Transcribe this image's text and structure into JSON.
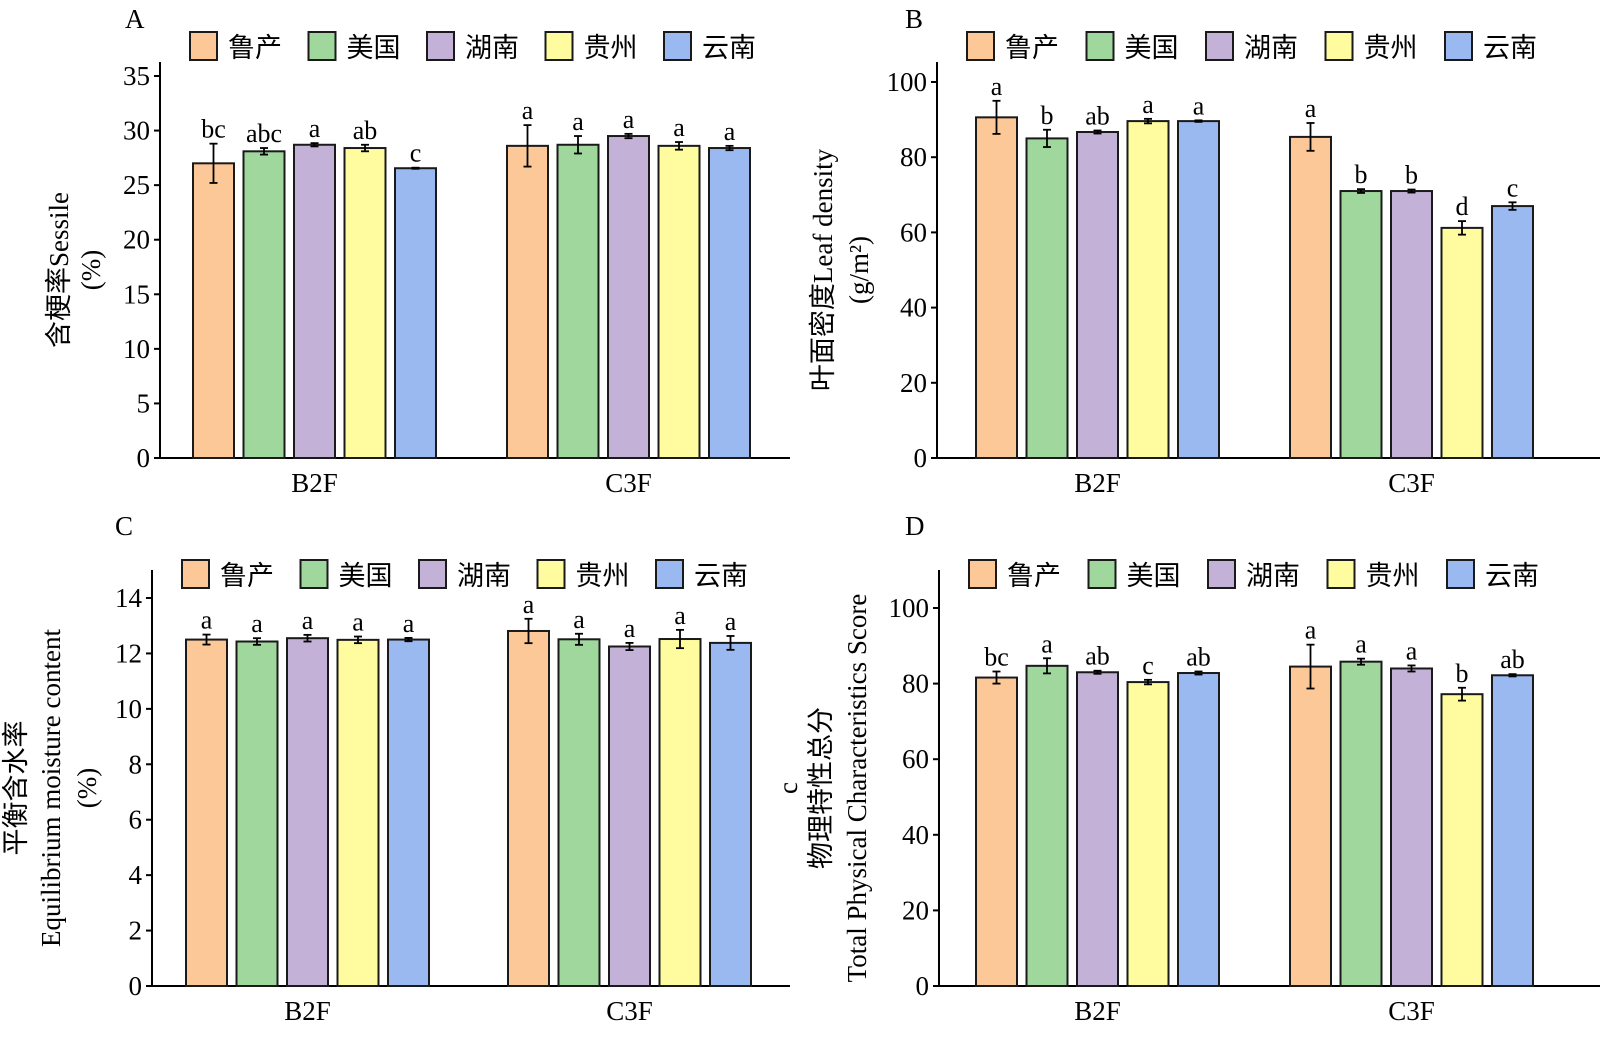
{
  "colors": {
    "鲁产": "#FDC897",
    "美国": "#9FD79D",
    "湖南": "#C3B1D7",
    "贵州": "#FEFC9E",
    "云南": "#9BB9F1",
    "bar_stroke": "#1a1a1a"
  },
  "chart_data": [
    {
      "panel": "A",
      "type": "bar",
      "title": "",
      "ylabel_lines": [
        "含梗率Sessile",
        "(%)"
      ],
      "xlabel": "",
      "categories": [
        "B2F",
        "C3F"
      ],
      "legend": [
        "鲁产",
        "美国",
        "湖南",
        "贵州",
        "云南"
      ],
      "legend_position": "top",
      "ylim": [
        0,
        38
      ],
      "yticks": [
        0,
        5,
        10,
        15,
        20,
        25,
        30,
        35
      ],
      "grid": false,
      "series": [
        {
          "name": "鲁产",
          "values": [
            27.0,
            28.6
          ],
          "errors": [
            1.8,
            1.9
          ],
          "letters": [
            "bc",
            "a"
          ]
        },
        {
          "name": "美国",
          "values": [
            28.1,
            28.7
          ],
          "errors": [
            0.3,
            0.8
          ],
          "letters": [
            "abc",
            "a"
          ]
        },
        {
          "name": "湖南",
          "values": [
            28.7,
            29.5
          ],
          "errors": [
            0.15,
            0.2
          ],
          "letters": [
            "a",
            "a"
          ]
        },
        {
          "name": "贵州",
          "values": [
            28.4,
            28.6
          ],
          "errors": [
            0.3,
            0.35
          ],
          "letters": [
            "ab",
            "a"
          ]
        },
        {
          "name": "云南",
          "values": [
            26.55,
            28.4
          ],
          "errors": [
            0.05,
            0.2
          ],
          "letters": [
            "c",
            "a"
          ]
        }
      ]
    },
    {
      "panel": "B",
      "type": "bar",
      "title": "",
      "ylabel_lines": [
        "叶面密度Leaf density",
        "(g/m²)"
      ],
      "xlabel": "",
      "categories": [
        "B2F",
        "C3F"
      ],
      "legend": [
        "鲁产",
        "美国",
        "湖南",
        "贵州",
        "云南"
      ],
      "legend_position": "top",
      "ylim": [
        0,
        110
      ],
      "yticks": [
        0,
        20,
        40,
        60,
        80,
        100
      ],
      "grid": false,
      "series": [
        {
          "name": "鲁产",
          "values": [
            90.6,
            85.4
          ],
          "errors": [
            4.4,
            3.7
          ],
          "letters": [
            "a",
            "a"
          ]
        },
        {
          "name": "美国",
          "values": [
            85.0,
            71.0
          ],
          "errors": [
            2.3,
            0.5
          ],
          "letters": [
            "b",
            "b"
          ]
        },
        {
          "name": "湖南",
          "values": [
            86.7,
            71.0
          ],
          "errors": [
            0.4,
            0.4
          ],
          "letters": [
            "ab",
            "b"
          ]
        },
        {
          "name": "贵州",
          "values": [
            89.6,
            61.2
          ],
          "errors": [
            0.6,
            1.8
          ],
          "letters": [
            "a",
            "d"
          ]
        },
        {
          "name": "云南",
          "values": [
            89.6,
            67.0
          ],
          "errors": [
            0.2,
            1.0
          ],
          "letters": [
            "a",
            "c"
          ]
        }
      ]
    },
    {
      "panel": "C",
      "type": "bar",
      "title": "",
      "ylabel_lines": [
        "平衡含水率",
        "Equilibrium moisture content",
        "(%)"
      ],
      "xlabel": "",
      "categories": [
        "B2F",
        "C3F"
      ],
      "legend": [
        "鲁产",
        "美国",
        "湖南",
        "贵州",
        "云南"
      ],
      "legend_position": "top",
      "ylim": [
        0,
        15
      ],
      "yticks": [
        0,
        2,
        4,
        6,
        8,
        10,
        12,
        14
      ],
      "grid": false,
      "series": [
        {
          "name": "鲁产",
          "values": [
            12.5,
            12.81
          ],
          "errors": [
            0.18,
            0.44
          ],
          "letters": [
            "a",
            "a"
          ]
        },
        {
          "name": "美国",
          "values": [
            12.43,
            12.51
          ],
          "errors": [
            0.12,
            0.2
          ],
          "letters": [
            "a",
            "a"
          ]
        },
        {
          "name": "湖南",
          "values": [
            12.55,
            12.25
          ],
          "errors": [
            0.12,
            0.13
          ],
          "letters": [
            "a",
            "a"
          ]
        },
        {
          "name": "贵州",
          "values": [
            12.49,
            12.52
          ],
          "errors": [
            0.12,
            0.33
          ],
          "letters": [
            "a",
            "a"
          ]
        },
        {
          "name": "云南",
          "values": [
            12.5,
            12.38
          ],
          "errors": [
            0.06,
            0.25
          ],
          "letters": [
            "a",
            "a"
          ]
        }
      ]
    },
    {
      "panel": "D",
      "type": "bar",
      "title": "",
      "ylabel_lines": [
        "c",
        "物理特性总分",
        "Total Physical Characteristics Score"
      ],
      "xlabel": "",
      "categories": [
        "B2F",
        "C3F"
      ],
      "legend": [
        "鲁产",
        "美国",
        "湖南",
        "贵州",
        "云南"
      ],
      "legend_position": "top",
      "ylim": [
        0,
        110
      ],
      "yticks": [
        0,
        20,
        40,
        60,
        80,
        100
      ],
      "grid": false,
      "series": [
        {
          "name": "鲁产",
          "values": [
            81.6,
            84.5
          ],
          "errors": [
            1.6,
            5.8
          ],
          "letters": [
            "bc",
            "a"
          ]
        },
        {
          "name": "美国",
          "values": [
            84.7,
            85.8
          ],
          "errors": [
            2.0,
            0.8
          ],
          "letters": [
            "a",
            "a"
          ]
        },
        {
          "name": "湖南",
          "values": [
            83.0,
            84.0
          ],
          "errors": [
            0.4,
            0.8
          ],
          "letters": [
            "ab",
            "a"
          ]
        },
        {
          "name": "贵州",
          "values": [
            80.4,
            77.2
          ],
          "errors": [
            0.6,
            1.7
          ],
          "letters": [
            "c",
            "b"
          ]
        },
        {
          "name": "云南",
          "values": [
            82.8,
            82.2
          ],
          "errors": [
            0.4,
            0.3
          ],
          "letters": [
            "ab",
            "ab"
          ]
        }
      ]
    }
  ]
}
